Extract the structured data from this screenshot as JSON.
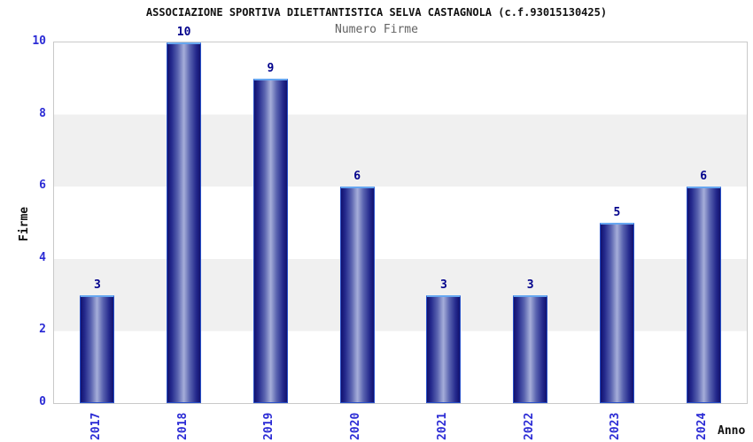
{
  "chart_data": {
    "type": "bar",
    "title": "ASSOCIAZIONE SPORTIVA DILETTANTISTICA SELVA CASTAGNOLA (c.f.93015130425)",
    "subtitle": "Numero Firme",
    "xlabel": "Anno",
    "ylabel": "Firme",
    "categories": [
      "2017",
      "2018",
      "2019",
      "2020",
      "2021",
      "2022",
      "2023",
      "2024"
    ],
    "values": [
      3,
      10,
      9,
      6,
      3,
      3,
      5,
      6
    ],
    "ylim": [
      0,
      10
    ],
    "yticks": [
      0,
      2,
      4,
      6,
      8,
      10
    ],
    "grid": "horizontal alternating bands every 2 units",
    "legend": "none"
  },
  "colors": {
    "bar_edge": "#12126e",
    "bar_center": "#a6aed9",
    "bar_border": "#2850c8",
    "bar_border_top": "#66a6f0",
    "tick_label": "#2b2bd5",
    "value_label": "#00008b",
    "title": "#111111",
    "subtitle": "#636363",
    "band_gray": "#f0f0f0",
    "plot_border": "#c9c9c9",
    "background": "#ffffff"
  }
}
